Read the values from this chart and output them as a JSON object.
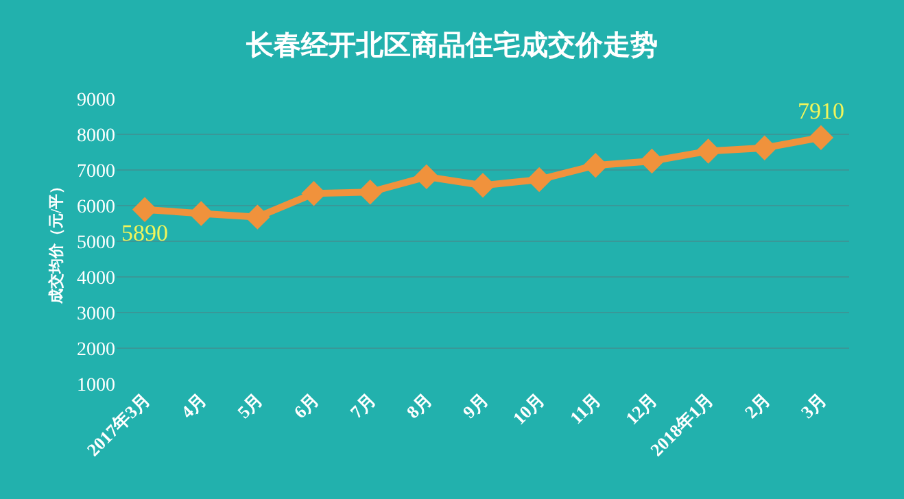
{
  "chart_data": {
    "type": "line",
    "title": "长春经开北区商品住宅成交价走势",
    "ylabel": "成交均价（元/平）",
    "categories": [
      "2017年3月",
      "4月",
      "5月",
      "6月",
      "7月",
      "8月",
      "9月",
      "10月",
      "11月",
      "12月",
      "2018年1月",
      "2月",
      "3月"
    ],
    "series": [
      {
        "color": "#f0923c",
        "values": [
          5890,
          5780,
          5680,
          6340,
          6380,
          6810,
          6570,
          6730,
          7130,
          7250,
          7530,
          7620,
          7910
        ],
        "value_labels": [
          "5890",
          null,
          null,
          null,
          null,
          null,
          null,
          null,
          null,
          null,
          null,
          null,
          "7910"
        ]
      }
    ],
    "ylim": [
      1000,
      9000
    ],
    "yticks": [
      1000,
      2000,
      3000,
      4000,
      5000,
      6000,
      7000,
      8000,
      9000
    ],
    "grid": "y",
    "marker": "diamond",
    "line_style": "solid"
  }
}
